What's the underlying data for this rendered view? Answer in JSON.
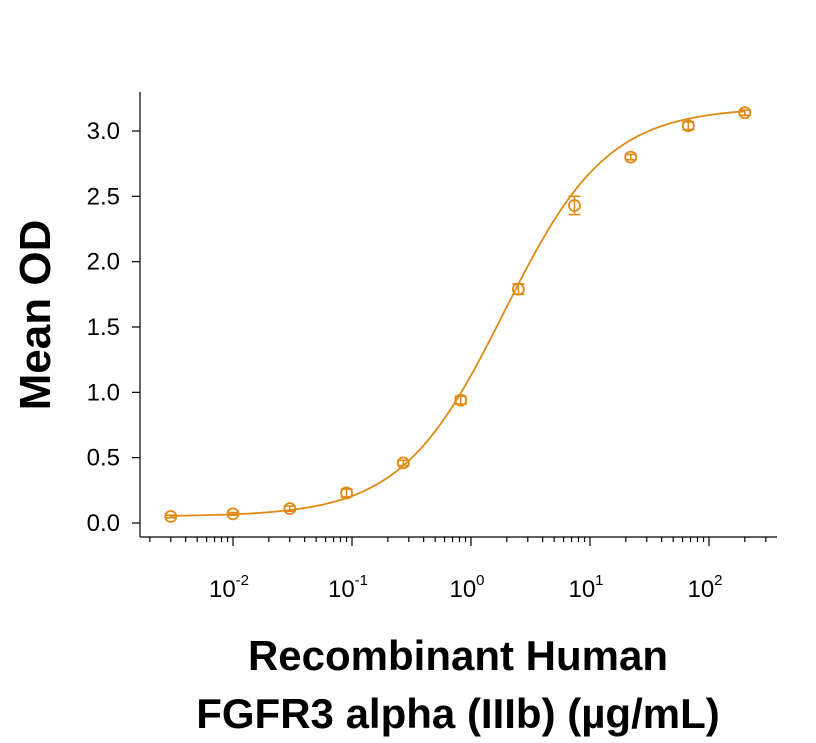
{
  "chart_data": {
    "type": "scatter",
    "title": "",
    "ylabel": "Mean OD",
    "xlabel_lines": [
      "Recombinant Human",
      "FGFR3 alpha (IIIb) (µg/mL)"
    ],
    "x_scale": "log",
    "xlim": [
      0.002,
      300
    ],
    "ylim": [
      -0.1,
      3.3
    ],
    "y_ticks": [
      0.0,
      0.5,
      1.0,
      1.5,
      2.0,
      2.5,
      3.0
    ],
    "y_tick_labels": [
      "0.0",
      "0.5",
      "1.0",
      "1.5",
      "2.0",
      "2.5",
      "3.0"
    ],
    "x_major_ticks": [
      {
        "value": 0.01,
        "base": "10",
        "exp": "-2"
      },
      {
        "value": 0.1,
        "base": "10",
        "exp": "-1"
      },
      {
        "value": 1,
        "base": "10",
        "exp": "0"
      },
      {
        "value": 10,
        "base": "10",
        "exp": "1"
      },
      {
        "value": 100,
        "base": "10",
        "exp": "2"
      }
    ],
    "color": "#E08A14",
    "series": [
      {
        "x": [
          0.003,
          0.01,
          0.03,
          0.09,
          0.27,
          0.82,
          2.5,
          7.4,
          22,
          67,
          200
        ],
        "y": [
          0.05,
          0.07,
          0.11,
          0.23,
          0.46,
          0.94,
          1.79,
          2.43,
          2.8,
          3.04,
          3.14
        ],
        "err": [
          0.01,
          0.01,
          0.02,
          0.03,
          0.02,
          0.03,
          0.04,
          0.07,
          0.02,
          0.03,
          0.02
        ]
      }
    ],
    "fit": {
      "bottom": 0.05,
      "top": 3.18,
      "ec50": 1.9,
      "hill": 1.0
    },
    "grid": false,
    "legend": "none"
  }
}
